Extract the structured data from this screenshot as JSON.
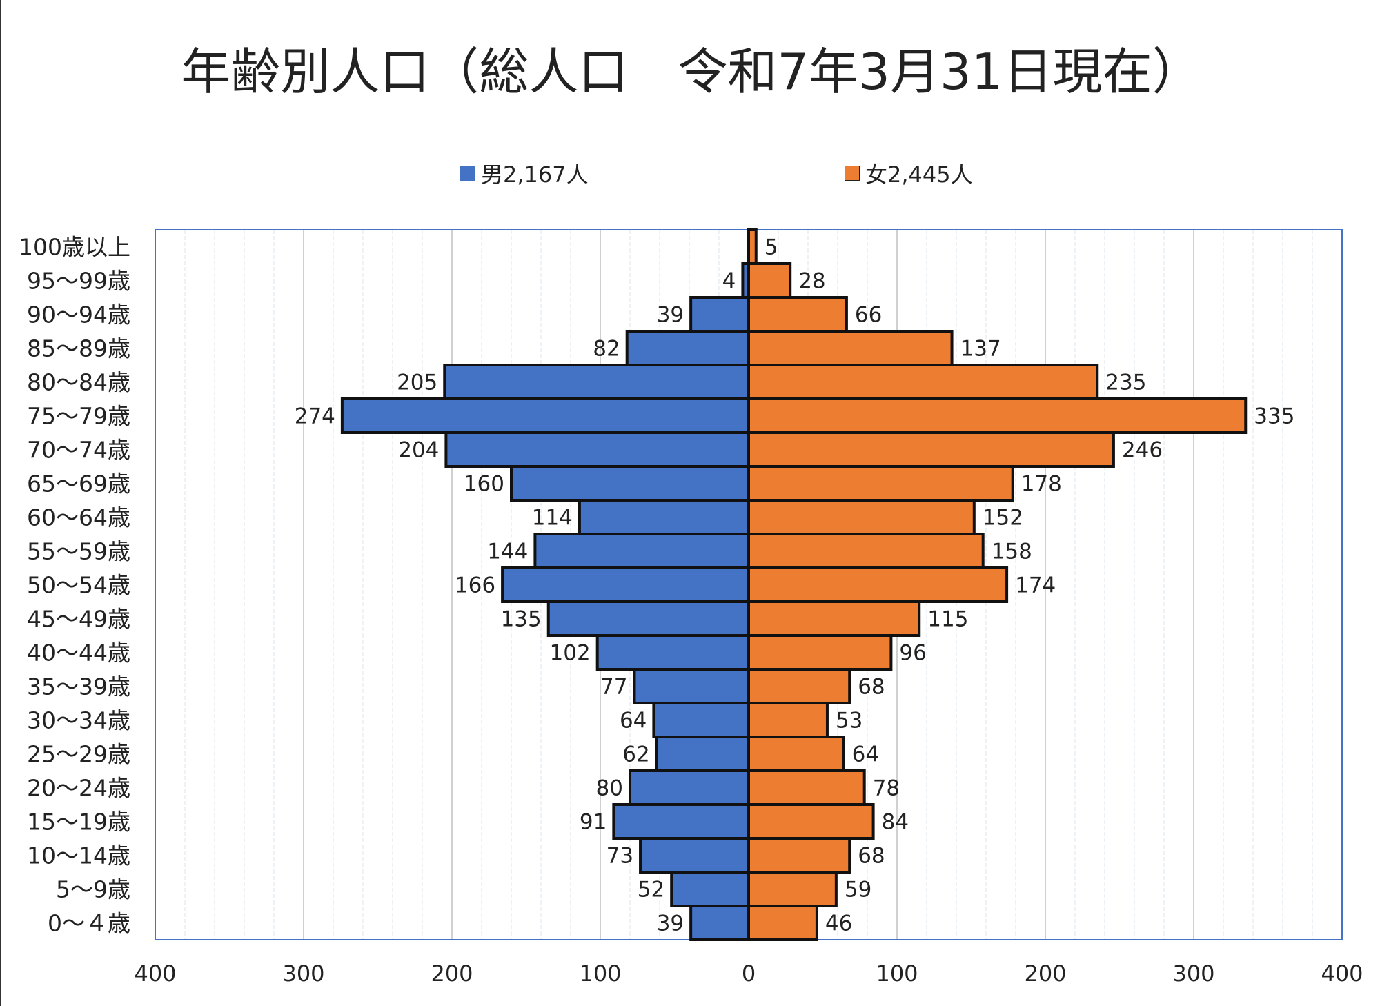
{
  "chart_data": {
    "type": "bar",
    "orientation": "horizontal",
    "subtype": "population-pyramid",
    "title": "年齢別人口（総人口　令和7年3月31日現在）",
    "categories": [
      "100歳以上",
      "95～99歳",
      "90～94歳",
      "85～89歳",
      "80～84歳",
      "75～79歳",
      "70～74歳",
      "65～69歳",
      "60～64歳",
      "55～59歳",
      "50～54歳",
      "45～49歳",
      "40～44歳",
      "35～39歳",
      "30～34歳",
      "25～29歳",
      "20～24歳",
      "15～19歳",
      "10～14歳",
      "5～9歳",
      "0～４歳"
    ],
    "series": [
      {
        "name": "男2,167人",
        "color": "#4472C4",
        "side": "left",
        "values": [
          0,
          4,
          39,
          82,
          205,
          274,
          204,
          160,
          114,
          144,
          166,
          135,
          102,
          77,
          64,
          62,
          80,
          91,
          73,
          52,
          39
        ]
      },
      {
        "name": "女2,445人",
        "color": "#ED7D31",
        "side": "right",
        "values": [
          5,
          28,
          66,
          137,
          235,
          335,
          246,
          178,
          152,
          158,
          174,
          115,
          96,
          68,
          53,
          64,
          78,
          84,
          68,
          59,
          46
        ]
      }
    ],
    "xlim": [
      -400,
      400
    ],
    "xticks": [
      "400",
      "300",
      "200",
      "100",
      "0",
      "100",
      "200",
      "300",
      "400"
    ],
    "grid": true,
    "legend_position": "top",
    "plot_border_color": "#4472C4"
  }
}
